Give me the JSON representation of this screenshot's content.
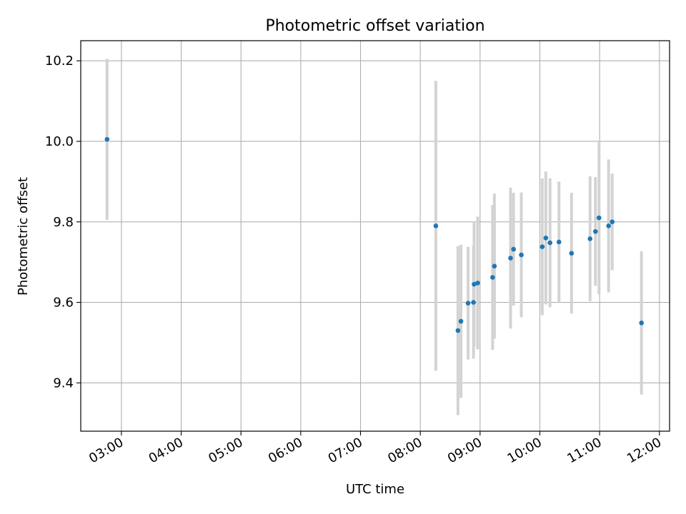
{
  "chart_data": {
    "type": "scatter",
    "title": "Photometric offset variation",
    "xlabel": "UTC time",
    "ylabel": "Photometric offset",
    "grid": true,
    "x_unit": "hours UTC",
    "xlim": [
      2.32,
      12.17
    ],
    "ylim": [
      9.28,
      10.25
    ],
    "x_ticks": [
      {
        "value": 3,
        "label": "03:00"
      },
      {
        "value": 4,
        "label": "04:00"
      },
      {
        "value": 5,
        "label": "05:00"
      },
      {
        "value": 6,
        "label": "06:00"
      },
      {
        "value": 7,
        "label": "07:00"
      },
      {
        "value": 8,
        "label": "08:00"
      },
      {
        "value": 9,
        "label": "09:00"
      },
      {
        "value": 10,
        "label": "10:00"
      },
      {
        "value": 11,
        "label": "11:00"
      },
      {
        "value": 12,
        "label": "12:00"
      }
    ],
    "y_ticks": [
      {
        "value": 9.4,
        "label": "9.4"
      },
      {
        "value": 9.6,
        "label": "9.6"
      },
      {
        "value": 9.8,
        "label": "9.8"
      },
      {
        "value": 10.0,
        "label": "10.0"
      },
      {
        "value": 10.2,
        "label": "10.2"
      }
    ],
    "marker_color": "#1f77b4",
    "errorbar_color": "#d3d3d3",
    "points": [
      {
        "time": "02:46",
        "x": 2.76,
        "y": 10.005,
        "err": 0.2
      },
      {
        "time": "08:15",
        "x": 8.26,
        "y": 9.79,
        "err": 0.36
      },
      {
        "time": "08:38",
        "x": 8.63,
        "y": 9.53,
        "err": 0.21
      },
      {
        "time": "08:41",
        "x": 8.68,
        "y": 9.553,
        "err": 0.19
      },
      {
        "time": "08:48",
        "x": 8.8,
        "y": 9.598,
        "err": 0.14
      },
      {
        "time": "08:53",
        "x": 8.89,
        "y": 9.6,
        "err": 0.14
      },
      {
        "time": "08:54",
        "x": 8.9,
        "y": 9.645,
        "err": 0.155
      },
      {
        "time": "08:58",
        "x": 8.96,
        "y": 9.648,
        "err": 0.165
      },
      {
        "time": "09:13",
        "x": 9.21,
        "y": 9.662,
        "err": 0.18
      },
      {
        "time": "09:14",
        "x": 9.24,
        "y": 9.69,
        "err": 0.18
      },
      {
        "time": "09:31",
        "x": 9.51,
        "y": 9.71,
        "err": 0.175
      },
      {
        "time": "09:34",
        "x": 9.56,
        "y": 9.732,
        "err": 0.14
      },
      {
        "time": "09:42",
        "x": 9.69,
        "y": 9.718,
        "err": 0.155
      },
      {
        "time": "10:02",
        "x": 10.04,
        "y": 9.738,
        "err": 0.17
      },
      {
        "time": "10:06",
        "x": 10.1,
        "y": 9.76,
        "err": 0.165
      },
      {
        "time": "10:10",
        "x": 10.17,
        "y": 9.748,
        "err": 0.16
      },
      {
        "time": "10:19",
        "x": 10.32,
        "y": 9.75,
        "err": 0.15
      },
      {
        "time": "10:32",
        "x": 10.53,
        "y": 9.722,
        "err": 0.15
      },
      {
        "time": "10:50",
        "x": 10.84,
        "y": 9.758,
        "err": 0.155
      },
      {
        "time": "10:56",
        "x": 10.93,
        "y": 9.776,
        "err": 0.135
      },
      {
        "time": "10:59",
        "x": 10.99,
        "y": 9.81,
        "err": 0.19
      },
      {
        "time": "11:09",
        "x": 11.15,
        "y": 9.79,
        "err": 0.165
      },
      {
        "time": "11:13",
        "x": 11.21,
        "y": 9.8,
        "err": 0.12
      },
      {
        "time": "11:42",
        "x": 11.7,
        "y": 9.549,
        "err": 0.178
      }
    ]
  }
}
